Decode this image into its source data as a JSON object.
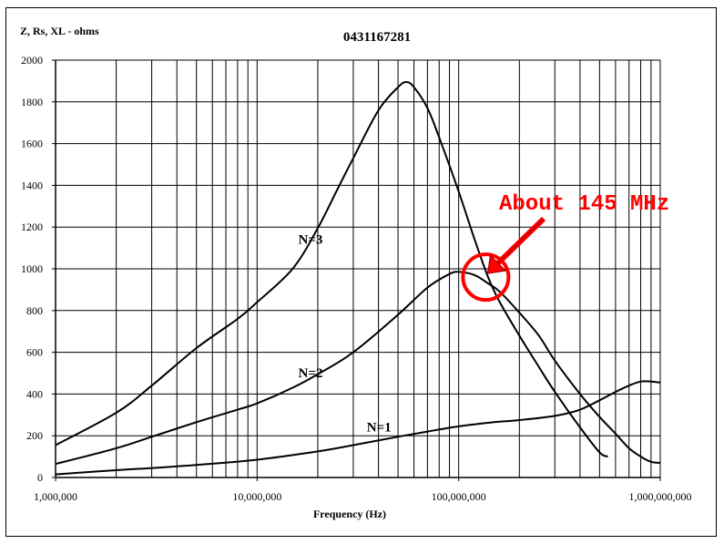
{
  "chart_data": {
    "type": "line",
    "title": "0431167281",
    "ylabel": "Z, Rs, XL - ohms",
    "xlabel": "Frequency (Hz)",
    "x_scale": "log",
    "xlim": [
      1000000,
      1000000000
    ],
    "ylim": [
      0,
      2000
    ],
    "grid": true,
    "x_ticks": [
      1000000,
      10000000,
      100000000,
      1000000000
    ],
    "x_tick_labels": [
      "1,000,000",
      "10,000,000",
      "100,000,000",
      "1,000,000,000"
    ],
    "y_ticks": [
      0,
      200,
      400,
      600,
      800,
      1000,
      1200,
      1400,
      1600,
      1800,
      2000
    ],
    "y_tick_labels": [
      "0",
      "200",
      "400",
      "600",
      "800",
      "1000",
      "1200",
      "1400",
      "1600",
      "1800",
      "2000"
    ],
    "series": [
      {
        "name": "N=3",
        "x": [
          1000000,
          2000000,
          3000000,
          5000000,
          8000000,
          10000000,
          15000000,
          20000000,
          25000000,
          30000000,
          40000000,
          50000000,
          55000000,
          60000000,
          70000000,
          80000000,
          100000000,
          120000000,
          140000000,
          160000000,
          200000000,
          250000000,
          300000000,
          400000000,
          500000000,
          550000000
        ],
        "values": [
          155,
          310,
          440,
          620,
          760,
          840,
          1000,
          1195,
          1380,
          1530,
          1760,
          1870,
          1895,
          1870,
          1770,
          1630,
          1370,
          1140,
          960,
          840,
          680,
          530,
          410,
          240,
          120,
          100
        ]
      },
      {
        "name": "N=2",
        "x": [
          1000000,
          2000000,
          3000000,
          5000000,
          8000000,
          10000000,
          15000000,
          20000000,
          30000000,
          50000000,
          70000000,
          90000000,
          100000000,
          120000000,
          140000000,
          160000000,
          200000000,
          250000000,
          300000000,
          400000000,
          500000000,
          600000000,
          700000000,
          800000000,
          900000000,
          1000000000
        ],
        "values": [
          65,
          140,
          195,
          265,
          325,
          355,
          430,
          495,
          600,
          780,
          910,
          975,
          985,
          970,
          930,
          890,
          790,
          680,
          560,
          400,
          290,
          210,
          140,
          100,
          75,
          70
        ]
      },
      {
        "name": "N=1",
        "x": [
          1000000,
          2000000,
          3000000,
          5000000,
          10000000,
          20000000,
          30000000,
          50000000,
          70000000,
          100000000,
          150000000,
          200000000,
          300000000,
          400000000,
          500000000,
          600000000,
          700000000,
          800000000,
          900000000,
          1000000000
        ],
        "values": [
          15,
          35,
          45,
          60,
          85,
          125,
          155,
          195,
          220,
          245,
          265,
          275,
          295,
          325,
          370,
          410,
          440,
          460,
          460,
          455
        ]
      }
    ],
    "annotations": [
      {
        "text": "About 145 MHz",
        "target_x": 145000000,
        "target_y": 960,
        "color": "#ff0000"
      }
    ]
  }
}
